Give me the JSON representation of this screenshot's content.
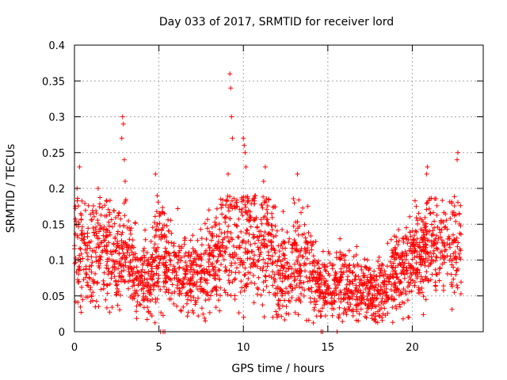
{
  "chart_data": {
    "type": "scatter",
    "title": "Day 033 of 2017, SRMTID for receiver lord",
    "xlabel": "GPS time / hours",
    "ylabel": "SRMTID / TECUs",
    "xlim": [
      0,
      24.2
    ],
    "ylim": [
      0,
      0.4
    ],
    "x_ticks": [
      0,
      5,
      10,
      15,
      20
    ],
    "x_tick_labels": [
      "0",
      "5",
      "10",
      "15",
      "20"
    ],
    "y_ticks": [
      0,
      0.05,
      0.1,
      0.15,
      0.2,
      0.25,
      0.3,
      0.35,
      0.4
    ],
    "y_tick_labels": [
      "0",
      "0.05",
      "0.1",
      "0.15",
      "0.2",
      "0.25",
      "0.3",
      "0.35",
      "0.4"
    ],
    "grid": true,
    "marker": "+",
    "marker_color": "#ff0000",
    "series": [
      {
        "name": "SRMTID",
        "profile": {
          "hours": [
            0.0,
            0.5,
            1.0,
            1.5,
            2.0,
            2.5,
            3.0,
            3.5,
            4.0,
            4.5,
            5.0,
            5.5,
            6.0,
            6.5,
            7.0,
            7.5,
            8.0,
            8.5,
            9.0,
            9.5,
            10.0,
            10.5,
            11.0,
            11.5,
            12.0,
            12.5,
            13.0,
            13.5,
            14.0,
            14.5,
            15.0,
            15.5,
            16.0,
            16.5,
            17.0,
            17.5,
            18.0,
            18.5,
            19.0,
            19.5,
            20.0,
            20.5,
            21.0,
            21.5,
            22.0,
            22.5,
            22.9
          ],
          "mean_tecu": [
            0.11,
            0.12,
            0.1,
            0.12,
            0.11,
            0.1,
            0.12,
            0.08,
            0.07,
            0.07,
            0.12,
            0.09,
            0.09,
            0.085,
            0.08,
            0.08,
            0.1,
            0.11,
            0.13,
            0.12,
            0.14,
            0.13,
            0.12,
            0.13,
            0.08,
            0.085,
            0.1,
            0.11,
            0.085,
            0.065,
            0.06,
            0.065,
            0.07,
            0.065,
            0.055,
            0.06,
            0.055,
            0.06,
            0.085,
            0.08,
            0.1,
            0.11,
            0.12,
            0.115,
            0.12,
            0.12,
            0.13
          ],
          "spread_tecu": [
            0.04,
            0.04,
            0.035,
            0.04,
            0.035,
            0.035,
            0.04,
            0.03,
            0.025,
            0.025,
            0.04,
            0.03,
            0.03,
            0.03,
            0.03,
            0.03,
            0.03,
            0.035,
            0.045,
            0.045,
            0.045,
            0.045,
            0.04,
            0.04,
            0.035,
            0.035,
            0.035,
            0.035,
            0.03,
            0.025,
            0.025,
            0.025,
            0.025,
            0.025,
            0.02,
            0.025,
            0.025,
            0.025,
            0.03,
            0.03,
            0.035,
            0.035,
            0.035,
            0.035,
            0.035,
            0.035,
            0.035
          ]
        },
        "zero_points": [
          5.1,
          5.25,
          5.35,
          14.6,
          14.7,
          15.55
        ],
        "peaks": [
          {
            "x": 0.15,
            "y": 0.2
          },
          {
            "x": 0.3,
            "y": 0.23
          },
          {
            "x": 1.4,
            "y": 0.2
          },
          {
            "x": 2.85,
            "y": 0.3
          },
          {
            "x": 2.9,
            "y": 0.29
          },
          {
            "x": 2.8,
            "y": 0.27
          },
          {
            "x": 2.95,
            "y": 0.24
          },
          {
            "x": 3.0,
            "y": 0.21
          },
          {
            "x": 4.8,
            "y": 0.22
          },
          {
            "x": 4.9,
            "y": 0.19
          },
          {
            "x": 9.2,
            "y": 0.36
          },
          {
            "x": 9.25,
            "y": 0.34
          },
          {
            "x": 9.3,
            "y": 0.3
          },
          {
            "x": 9.35,
            "y": 0.27
          },
          {
            "x": 9.1,
            "y": 0.22
          },
          {
            "x": 10.0,
            "y": 0.27
          },
          {
            "x": 10.05,
            "y": 0.26
          },
          {
            "x": 10.1,
            "y": 0.25
          },
          {
            "x": 10.15,
            "y": 0.23
          },
          {
            "x": 11.3,
            "y": 0.23
          },
          {
            "x": 11.2,
            "y": 0.21
          },
          {
            "x": 13.2,
            "y": 0.22
          },
          {
            "x": 20.9,
            "y": 0.23
          },
          {
            "x": 20.85,
            "y": 0.22
          },
          {
            "x": 22.7,
            "y": 0.25
          },
          {
            "x": 22.65,
            "y": 0.24
          },
          {
            "x": 7.75,
            "y": 0.015
          },
          {
            "x": 16.8,
            "y": 0.015
          },
          {
            "x": 19.8,
            "y": 0.02
          },
          {
            "x": 12.0,
            "y": 0.02
          }
        ]
      }
    ]
  }
}
